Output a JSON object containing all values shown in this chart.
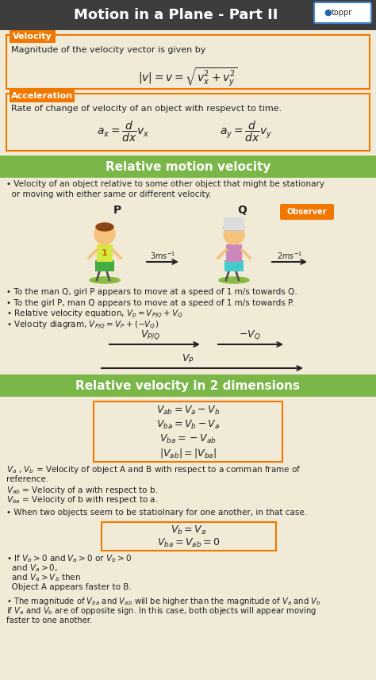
{
  "title": "Motion in a Plane - Part II",
  "bg_color": "#f0ead6",
  "header_bg": "#3d3d3d",
  "header_text_color": "#ffffff",
  "orange_color": "#f07800",
  "green_color": "#7ab648",
  "box_border": "#f07800",
  "section1_label": "Velocity",
  "section1_text": "Magnitude of the velocity vector is given by",
  "section2_label": "Acceleration",
  "section2_text": "Rate of change of velocity of an object with respevct to time.",
  "section3_header": "Relative motion velocity",
  "section3_bullet1": "• Velocity of an object relative to some other object that might be stationary",
  "section3_bullet1b": "  or moving with either same or different velocity.",
  "section3_bullet2": "• To the man Q, girl P appears to move at a speed of 1 m/s towards Q.",
  "section3_bullet3": "• To the girl P, man Q appears to move at a speed of 1 m/s towards P.",
  "section3_bullet4": "• Relative velocity equation, $V_p = V_{P/Q} + V_Q$",
  "section3_bullet5": "• Velocity diagram, $V_{P/Q} = V_P +(-V_Q)$",
  "section4_header": "Relative velocity in 2 dimensions",
  "section4_formula1": "$V_{ab} = V_a - V_b$",
  "section4_formula2": "$V_{ba} = V_b - V_a$",
  "section4_formula3": "$V_{ba} = - V_{ab}$",
  "section4_formula4": "$|V_{ab}| = |V_{ba}|$",
  "section4_text1a": "$V_a$ , $V_b$ = Velocity of object A and B with respect to a comman frame of",
  "section4_text1b": "reference.",
  "section4_text2": "$V_{ab}$ = Velocity of a with respect to b.",
  "section4_text3": "$V_{ba}$ = Velocity of b with respect to a.",
  "section4_bullet1": "• When two objects seem to be statiolnary for one another, in that case.",
  "section4_bullet2_line1": "• If $V_b > 0$ and $V_a > 0$ or $V_b > 0$",
  "section4_bullet2_line2": "  and $V_a > 0$,",
  "section4_bullet2_line3": "  and $V_a > V_b$ then",
  "section4_bullet2_line4": "  Object A appears faster to B.",
  "section4_bullet3_line1": "• The magnitude of $V_{ba}$ and $V_{ab}$ will be higher than the magnitude of $V_a$ and $V_b$",
  "section4_bullet3_line2": "if $V_a$ and $V_b$ are of opposite sign. In this case, both objects will appear moving",
  "section4_bullet3_line3": "faster to one another."
}
